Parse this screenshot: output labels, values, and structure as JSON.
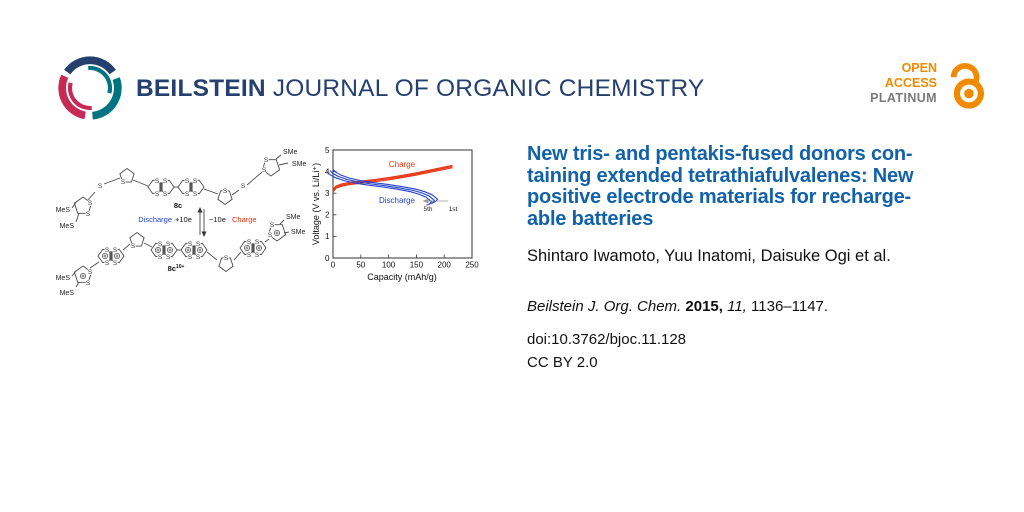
{
  "header": {
    "journal_bold": "BEILSTEIN",
    "journal_rest": "JOURNAL OF ORGANIC CHEMISTRY",
    "open_access_line1": "OPEN",
    "open_access_line2": "ACCESS",
    "open_access_line3": "PLATINUM"
  },
  "article": {
    "title_lines": [
      "New tris- and pentakis-fused donors con-",
      "taining extended tetrathiafulvalenes: New",
      "positive electrode materials for recharge-",
      "able batteries"
    ],
    "title_full": "New tris- and pentakis-fused donors containing extended tetrathiafulvalenes: New positive electrode materials for rechargeable batteries",
    "authors": "Shintaro Iwamoto, Yuu Inatomi, Daisuke Ogi et al.",
    "citation_journal": "Beilstein J. Org. Chem.",
    "citation_year": "2015,",
    "citation_volume": "11,",
    "citation_pages": "1136–1147.",
    "doi": "doi:10.3762/bjoc.11.128",
    "license": "CC BY 2.0"
  },
  "structure": {
    "atom_label": "S",
    "neutral_name": "8c",
    "oxidized_name": "8c",
    "oxidized_charge": "10+",
    "methylthio_left": "MeS",
    "methylthio_right": "SMe",
    "discharge_label": "Discharge",
    "discharge_electrons": "+10e",
    "charge_electrons": "−10e",
    "charge_label": "Charge"
  },
  "chart_data": {
    "type": "line",
    "title": "",
    "xlabel": "Capacity (mAh/g)",
    "ylabel": "Voltage (V vs. Li/Li⁺)",
    "xlim": [
      0,
      250
    ],
    "ylim": [
      0,
      5
    ],
    "xticks": [
      0,
      50,
      100,
      150,
      200,
      250
    ],
    "yticks": [
      0,
      1,
      2,
      3,
      4,
      5
    ],
    "grid": false,
    "legend_position": "inline",
    "series": [
      {
        "name": "Charge",
        "color": "#e63312",
        "x": [
          0,
          5,
          15,
          30,
          50,
          75,
          100,
          125,
          150,
          175,
          200,
          215
        ],
        "y": [
          3.05,
          3.22,
          3.32,
          3.4,
          3.46,
          3.53,
          3.62,
          3.72,
          3.84,
          3.97,
          4.1,
          4.18
        ]
      },
      {
        "name": "Discharge",
        "color": "#2442cc",
        "x": [
          0,
          5,
          15,
          30,
          50,
          75,
          100,
          125,
          150,
          165,
          178,
          188,
          184,
          179
        ],
        "y": [
          4.1,
          3.97,
          3.83,
          3.7,
          3.58,
          3.48,
          3.4,
          3.3,
          3.18,
          3.07,
          2.93,
          2.72,
          2.6,
          2.56
        ]
      }
    ],
    "annotations": {
      "cycle_start": "1st",
      "cycle_end": "5th"
    }
  },
  "colors": {
    "brand_navy": "#25406f",
    "brand_teal": "#007482",
    "brand_crimson": "#c62a57",
    "open_access_orange": "#f18a00",
    "platinum_gray": "#7a7a7a",
    "title_blue": "#1161ab",
    "charge_red": "#e63312",
    "discharge_blue": "#2442cc"
  }
}
